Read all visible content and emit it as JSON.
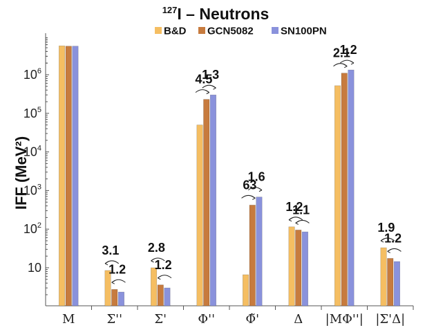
{
  "chart_data": {
    "type": "bar",
    "title": "I – Neutrons",
    "title_superscript": "127",
    "ylabel": "IFF (MeV²)",
    "yscale": "log",
    "ylim": [
      1,
      10000000
    ],
    "legend_position": "top",
    "categories": [
      "M",
      "Σ''",
      "Σ'",
      "Φ''",
      "Φ̃'",
      "Δ",
      "|MΦ''|",
      "|Σ'Δ|"
    ],
    "series": [
      {
        "name": "B&D",
        "color": "#f5be62",
        "values": [
          5600000,
          8.5,
          10,
          50000,
          6.6,
          115,
          520000,
          33
        ]
      },
      {
        "name": "GCN5082",
        "color": "#c77b3e",
        "values": [
          5500000,
          2.75,
          3.6,
          230000,
          420,
          95,
          1100000,
          17.5
        ]
      },
      {
        "name": "SN100PN",
        "color": "#8a92dc",
        "values": [
          5500000,
          2.35,
          3.0,
          300000,
          680,
          85,
          1330000,
          14.5
        ]
      }
    ],
    "yticks": [
      {
        "label": "10",
        "mant": "10",
        "exp": "",
        "value": 10
      },
      {
        "label": "10²",
        "mant": "10",
        "exp": "2",
        "value": 100
      },
      {
        "label": "10³",
        "mant": "10",
        "exp": "3",
        "value": 1000
      },
      {
        "label": "10⁴",
        "mant": "10",
        "exp": "4",
        "value": 10000
      },
      {
        "label": "10⁵",
        "mant": "10",
        "exp": "5",
        "value": 100000
      },
      {
        "label": "10⁶",
        "mant": "10",
        "exp": "6",
        "value": 1000000
      }
    ],
    "annotations": [
      {
        "category": 1,
        "from": 0,
        "to": 1,
        "text": "3.1"
      },
      {
        "category": 1,
        "from": 1,
        "to": 2,
        "text": "1.2"
      },
      {
        "category": 2,
        "from": 0,
        "to": 1,
        "text": "2.8"
      },
      {
        "category": 2,
        "from": 1,
        "to": 2,
        "text": "1.2"
      },
      {
        "category": 3,
        "from": 0,
        "to": 1,
        "text": "4.5"
      },
      {
        "category": 3,
        "from": 1,
        "to": 2,
        "text": "1.3"
      },
      {
        "category": 4,
        "from": 0,
        "to": 1,
        "text": "63"
      },
      {
        "category": 4,
        "from": 1,
        "to": 2,
        "text": "1.6"
      },
      {
        "category": 5,
        "from": 0,
        "to": 1,
        "text": "1.2"
      },
      {
        "category": 5,
        "from": 1,
        "to": 2,
        "text": "1.1"
      },
      {
        "category": 6,
        "from": 0,
        "to": 1,
        "text": "2.1"
      },
      {
        "category": 6,
        "from": 1,
        "to": 2,
        "text": "1.2"
      },
      {
        "category": 7,
        "from": 0,
        "to": 1,
        "text": "1.9"
      },
      {
        "category": 7,
        "from": 1,
        "to": 2,
        "text": "1.2"
      }
    ]
  }
}
